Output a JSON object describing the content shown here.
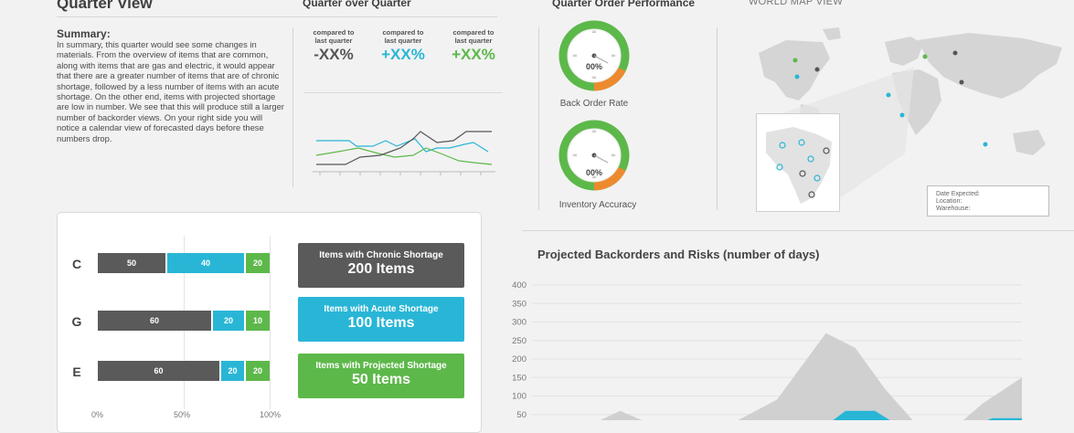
{
  "headers": {
    "quarter_view": "Quarter View",
    "quarter_over_quarter": "Quarter over Quarter",
    "quarter_order_performance": "Quarter Order Performance",
    "world_map_view": "WORLD MAP VIEW"
  },
  "summary": {
    "heading": "Summary:",
    "text": "In summary, this quarter would see some changes in materials. From the overview of items that are common, along with items that are gas and electric, it would appear that there are a greater number of items that are of chronic shortage, followed by a less number of items with an acute shortage. On the other end, items with projected shortage are low in number. We see that this will produce still a larger number of backorder views. On your right side you will notice a calendar view of forecasted days before these numbers drop."
  },
  "comparisons": [
    {
      "label1": "compared to",
      "label2": "last quarter",
      "value": "-XX%",
      "color": "#555555"
    },
    {
      "label1": "compared to",
      "label2": "last quarter",
      "value": "+XX%",
      "color": "#29b6d6"
    },
    {
      "label1": "compared to",
      "label2": "last quarter",
      "value": "+XX%",
      "color": "#5db84a"
    }
  ],
  "gauges": [
    {
      "label": "Back Order Rate",
      "value": "00%",
      "top_symbol": "∞",
      "side_symbol": "∞"
    },
    {
      "label": "Inventory Accuracy",
      "value": "00%",
      "top_symbol": "∞",
      "side_symbol": "∞"
    }
  ],
  "bars": {
    "rows": [
      {
        "letter": "C",
        "segments": [
          50,
          40,
          20
        ]
      },
      {
        "letter": "G",
        "segments": [
          60,
          20,
          10
        ]
      },
      {
        "letter": "E",
        "segments": [
          60,
          20,
          20
        ]
      }
    ],
    "colors": [
      "#5a5a5a",
      "#29b6d6",
      "#5db84a"
    ],
    "axis": [
      "0%",
      "50%",
      "100%"
    ]
  },
  "shortage_boxes": [
    {
      "label": "Items with Chronic Shortage",
      "count": "200 Items",
      "color": "#5a5a5a"
    },
    {
      "label": "Items with Acute Shortage",
      "count": "100 Items",
      "color": "#29b6d6"
    },
    {
      "label": "Items with Projected Shortage",
      "count": "50 Items",
      "color": "#5db84a"
    }
  ],
  "map_legend": {
    "line1": "Date Expected:",
    "line2": "Location:",
    "line3": "Warehouse:"
  },
  "chart_data": {
    "type": "area",
    "title": "Projected Backorders and Risks (number of days)",
    "yticks": [
      "400",
      "350",
      "300",
      "250",
      "200",
      "150",
      "100",
      "50"
    ],
    "ylim": [
      0,
      400
    ],
    "grid": true,
    "series": [
      {
        "color": "#d0d0d0",
        "x": [
          0,
          10,
          18,
          25,
          33,
          40,
          50,
          60,
          66,
          72,
          78,
          85,
          92,
          100
        ],
        "values": [
          0,
          10,
          60,
          20,
          0,
          20,
          90,
          270,
          230,
          120,
          30,
          0,
          80,
          150
        ]
      },
      {
        "color": "#29b6d6",
        "x": [
          58,
          64,
          70,
          76,
          82,
          88,
          94,
          100
        ],
        "values": [
          0,
          60,
          60,
          10,
          0,
          10,
          40,
          40
        ]
      }
    ]
  }
}
